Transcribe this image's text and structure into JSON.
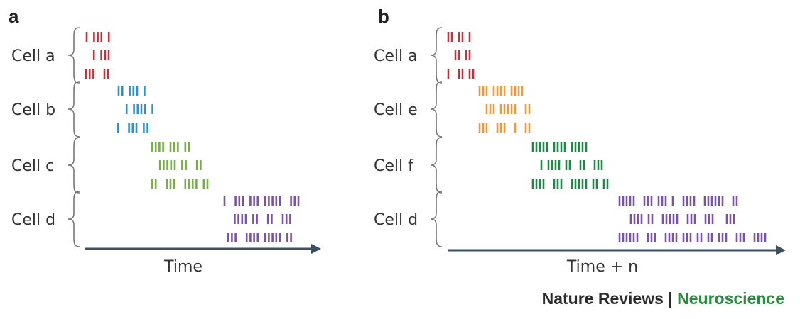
{
  "colors": {
    "cell_a": "#c3323a",
    "cell_b": "#2f8fcf",
    "cell_c": "#74b142",
    "cell_d": "#7a52a8",
    "cell_e": "#eb9a3d",
    "cell_f": "#1c8a45",
    "axis": "#3e4f60",
    "credit_brand": "#2a8a3e"
  },
  "panels": [
    {
      "letter": "a",
      "axis_label": "Time",
      "cells": [
        {
          "label": "Cell a",
          "color_key": "cell_a",
          "trains": [
            "x xxx x",
            " x xxx",
            "xxx  xx"
          ]
        },
        {
          "label": "Cell b",
          "color_key": "cell_b",
          "trains": [
            "xx xxx x",
            " x xxxx x",
            "x  xxx xx"
          ]
        },
        {
          "label": "Cell c",
          "color_key": "cell_c",
          "trains": [
            "xxxx xxx xx",
            " xxxxx xx  xx",
            "xx  xxx  xxxx xx"
          ]
        },
        {
          "label": "Cell d",
          "color_key": "cell_d",
          "trains": [
            "x  xxx xxx xxxxx  xxx",
            "  xxxx xx  xx  xxx",
            " xxx  xxxx xxxxx xx"
          ]
        }
      ]
    },
    {
      "letter": "b",
      "axis_label": "Time + n",
      "cells": [
        {
          "label": "Cell a",
          "color_key": "cell_a",
          "trains": [
            "xx xx x",
            " xx xx",
            "x  xx xx"
          ]
        },
        {
          "label": "Cell e",
          "color_key": "cell_e",
          "trains": [
            "xxx xxxx xxxx",
            " xxx xxxxx  xx",
            "xxx  xxx  x  xx"
          ]
        },
        {
          "label": "Cell f",
          "color_key": "cell_f",
          "trains": [
            "xxxxx xxxx xxxxx",
            " x xxxx xx  xx  xxx",
            "xxxx  xxx  xxxxx xx xx"
          ]
        },
        {
          "label": "Cell d",
          "color_key": "cell_d",
          "trains": [
            "xxxxx  xxx xxx x  xxxx  xxxxxx  xx",
            "  xxxx xx  xxxxx  xxx  xxx   xxx",
            "xxxxxx  xxx  xxxx xxx xx xx xxx  xxx  xxxx"
          ]
        }
      ]
    }
  ],
  "credit": {
    "journal": "Nature Reviews",
    "separator": " | ",
    "subject": "Neuroscience"
  }
}
